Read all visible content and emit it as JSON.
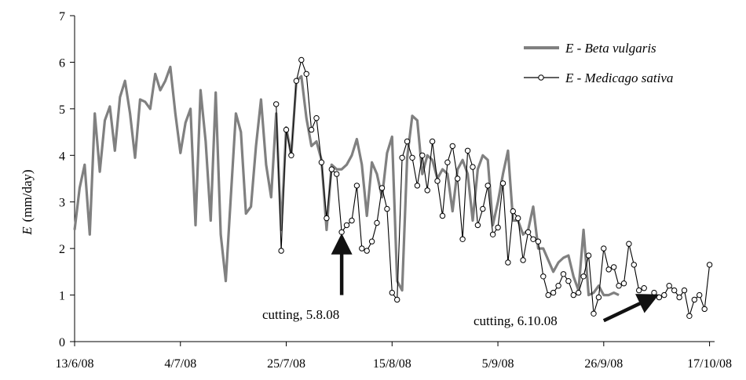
{
  "chart_data": {
    "type": "line",
    "ylabel": {
      "symbol": "E",
      "unit": "(mm/day)"
    },
    "ylim": [
      0,
      7
    ],
    "yticks": [
      "0",
      "1",
      "2",
      "3",
      "4",
      "5",
      "6",
      "7"
    ],
    "x_range": [
      "2008-06-13",
      "2008-10-18"
    ],
    "xticks": [
      {
        "date": "2008-06-13",
        "label": "13/6/08"
      },
      {
        "date": "2008-07-04",
        "label": "4/7/08"
      },
      {
        "date": "2008-07-25",
        "label": "25/7/08"
      },
      {
        "date": "2008-08-15",
        "label": "15/8/08"
      },
      {
        "date": "2008-09-05",
        "label": "5/9/08"
      },
      {
        "date": "2008-09-26",
        "label": "26/9/08"
      },
      {
        "date": "2008-10-17",
        "label": "17/10/08"
      }
    ],
    "legend_position": "top-right",
    "series": [
      {
        "name": "E - Beta vulgaris",
        "color": "#808080",
        "marker": "none",
        "start_date": "2008-06-13",
        "values": [
          2.4,
          3.3,
          3.8,
          2.3,
          4.9,
          3.65,
          4.75,
          5.05,
          4.1,
          5.25,
          5.6,
          4.9,
          3.95,
          5.2,
          5.15,
          5.0,
          5.75,
          5.4,
          5.6,
          5.9,
          4.9,
          4.05,
          4.7,
          5.0,
          2.5,
          5.4,
          4.3,
          2.6,
          5.35,
          2.3,
          1.3,
          3.1,
          4.9,
          4.5,
          2.75,
          2.9,
          4.2,
          5.2,
          3.8,
          3.1,
          4.9,
          2.4,
          4.6,
          4.0,
          5.6,
          5.7,
          4.8,
          4.2,
          4.3,
          3.9,
          2.4,
          3.8,
          3.7,
          3.7,
          3.8,
          4.0,
          4.35,
          3.8,
          2.7,
          3.85,
          3.6,
          3.1,
          4.05,
          4.4,
          1.3,
          1.1,
          3.95,
          4.85,
          4.75,
          3.6,
          4.0,
          3.9,
          3.5,
          3.7,
          3.6,
          2.8,
          3.7,
          3.9,
          3.6,
          2.6,
          3.7,
          4.0,
          3.9,
          2.5,
          3.0,
          3.6,
          4.1,
          2.6,
          2.6,
          2.3,
          2.4,
          2.9,
          2.0,
          2.0,
          1.75,
          1.5,
          1.7,
          1.8,
          1.85,
          1.4,
          1.1,
          2.4,
          1.0,
          1.05,
          1.2,
          1.0,
          1.0,
          1.05,
          1.0
        ]
      },
      {
        "name": "E - Medicago sativa",
        "color": "#000000",
        "marker": "circle",
        "start_date": "2008-07-23",
        "values": [
          5.1,
          1.95,
          4.55,
          4.0,
          5.6,
          6.05,
          5.75,
          4.55,
          4.8,
          3.85,
          2.65,
          3.7,
          3.6,
          2.35,
          2.5,
          2.6,
          3.35,
          2.0,
          1.95,
          2.15,
          2.55,
          3.3,
          2.85,
          1.05,
          0.9,
          3.95,
          4.3,
          3.95,
          3.35,
          4.0,
          3.25,
          4.3,
          3.45,
          2.7,
          3.85,
          4.2,
          3.5,
          2.2,
          4.1,
          3.75,
          2.5,
          2.85,
          3.35,
          2.3,
          2.45,
          3.4,
          1.7,
          2.8,
          2.65,
          1.75,
          2.35,
          2.2,
          2.15,
          1.4,
          1.0,
          1.05,
          1.2,
          1.45,
          1.3,
          1.0,
          1.05,
          1.4,
          1.85,
          0.6,
          0.95,
          2.0,
          1.55,
          1.6,
          1.2,
          1.25,
          2.1,
          1.65,
          1.1,
          1.15,
          null,
          1.05,
          0.95,
          1.0,
          1.2,
          1.1,
          0.95,
          1.1,
          0.55,
          0.9,
          1.0,
          0.7,
          1.65
        ]
      }
    ],
    "annotations": [
      {
        "text": "cutting, 5.8.08",
        "arrow_date": "2008-08-05",
        "arrow_from_value": 1.0,
        "arrow_to_value": 2.2
      },
      {
        "text": "cutting, 6.10.08",
        "arrow_from_date": "2008-09-26",
        "arrow_from_value": 0.45,
        "arrow_to_date": "2008-10-06",
        "arrow_to_value": 0.95
      }
    ]
  }
}
